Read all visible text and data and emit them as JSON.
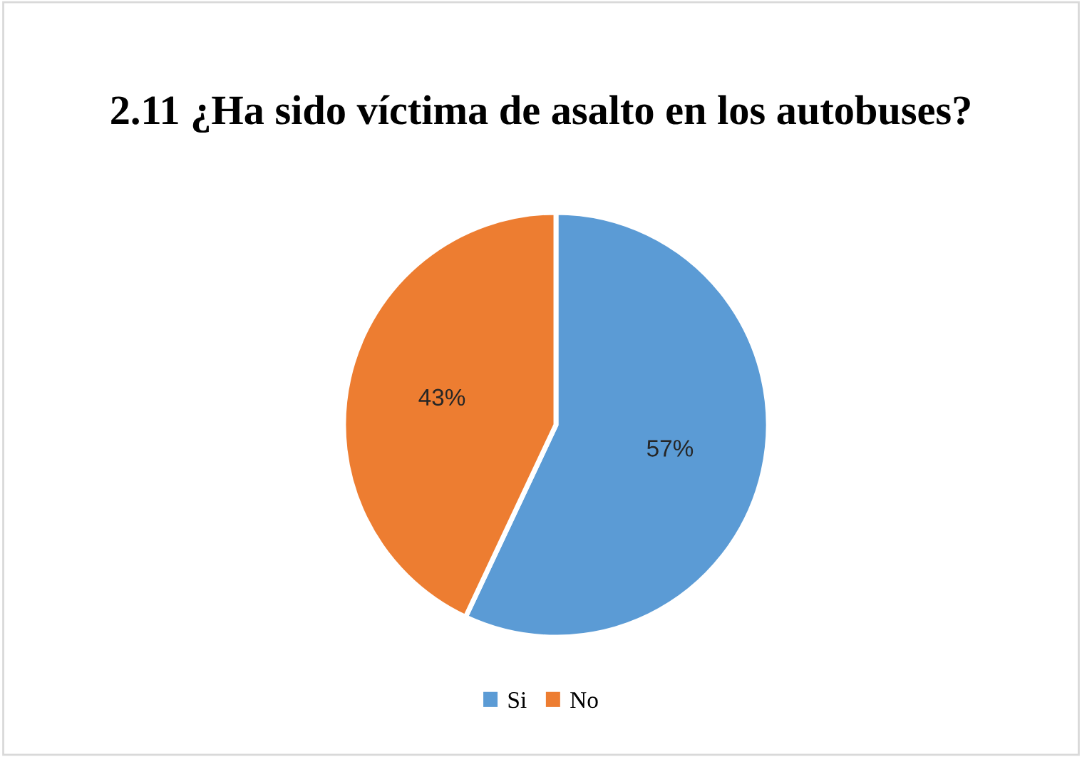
{
  "chart_data": {
    "type": "pie",
    "title": "2.11 ¿Ha sido víctima de asalto en los autobuses?",
    "categories": [
      "Si",
      "No"
    ],
    "values": [
      57,
      43
    ],
    "colors": [
      "#5b9bd5",
      "#ed7d31"
    ],
    "value_labels": [
      "57%",
      "43%"
    ],
    "legend": "bottom"
  }
}
